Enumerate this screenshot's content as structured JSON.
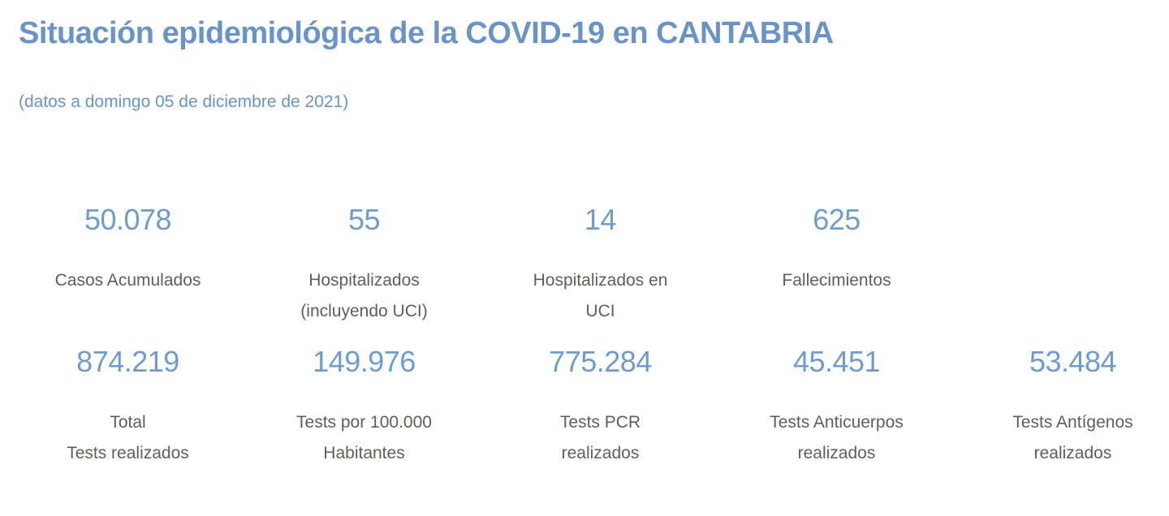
{
  "page": {
    "title": "Situación epidemiológica de la COVID-19 en CANTABRIA",
    "subtitle": "(datos a domingo 05 de diciembre de 2021)"
  },
  "colors": {
    "title_blue": "#6B94C6",
    "value_blue": "#6E9CCD",
    "label_gray": "#605E5C",
    "background": "#FFFFFF"
  },
  "stats": {
    "row1": [
      {
        "value": "50.078",
        "lines": [
          "Casos Acumulados"
        ]
      },
      {
        "value": "55",
        "lines": [
          "Hospitalizados",
          "(incluyendo UCI)"
        ]
      },
      {
        "value": "14",
        "lines": [
          "Hospitalizados en",
          "UCI"
        ]
      },
      {
        "value": "625",
        "lines": [
          "Fallecimientos"
        ]
      }
    ],
    "row2": [
      {
        "value": "874.219",
        "lines": [
          "Total",
          "Tests realizados"
        ]
      },
      {
        "value": "149.976",
        "lines": [
          "Tests por 100.000",
          "Habitantes"
        ]
      },
      {
        "value": "775.284",
        "lines": [
          "Tests PCR",
          "realizados"
        ]
      },
      {
        "value": "45.451",
        "lines": [
          "Tests Anticuerpos",
          "realizados"
        ]
      },
      {
        "value": "53.484",
        "lines": [
          "Tests Antígenos",
          "realizados"
        ]
      }
    ]
  },
  "chart_data": {
    "type": "table",
    "title": "Situación epidemiológica de la COVID-19 en CANTABRIA",
    "subtitle": "(datos a domingo 05 de diciembre de 2021)",
    "kpis": [
      {
        "label": "Casos Acumulados",
        "value": 50078,
        "display": "50.078"
      },
      {
        "label": "Hospitalizados (incluyendo UCI)",
        "value": 55,
        "display": "55"
      },
      {
        "label": "Hospitalizados en UCI",
        "value": 14,
        "display": "14"
      },
      {
        "label": "Fallecimientos",
        "value": 625,
        "display": "625"
      },
      {
        "label": "Total Tests realizados",
        "value": 874219,
        "display": "874.219"
      },
      {
        "label": "Tests por 100.000 Habitantes",
        "value": 149976,
        "display": "149.976"
      },
      {
        "label": "Tests PCR realizados",
        "value": 775284,
        "display": "775.284"
      },
      {
        "label": "Tests Anticuerpos realizados",
        "value": 45451,
        "display": "45.451"
      },
      {
        "label": "Tests Antígenos realizados",
        "value": 53484,
        "display": "53.484"
      }
    ]
  }
}
